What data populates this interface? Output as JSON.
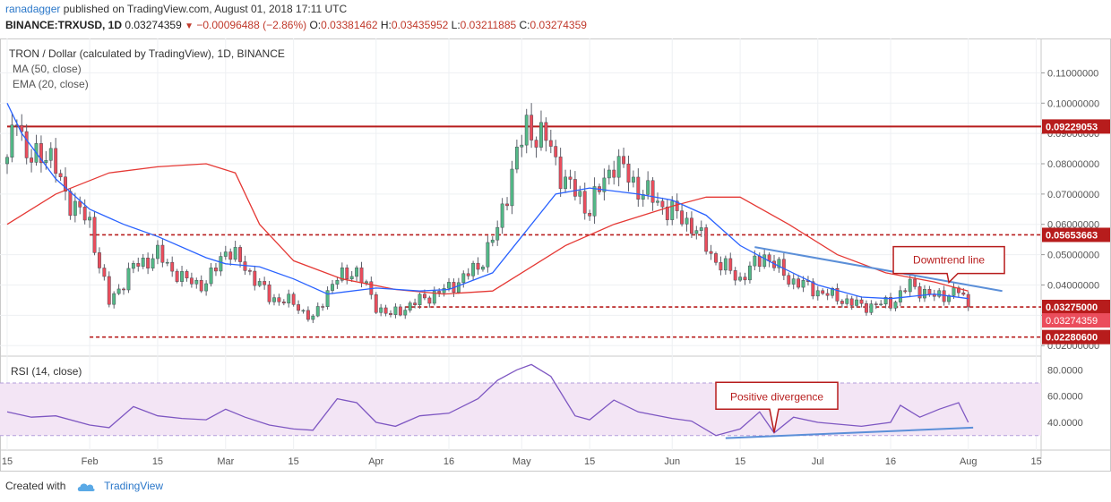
{
  "header": {
    "author": "ranadagger",
    "published_text": "published on TradingView.com, August 01, 2018 17:11 UTC",
    "symbol": "BINANCE:TRXUSD, 1D",
    "last": "0.03274359",
    "change": "−0.00096488 (−2.86%)",
    "o_label": "O:",
    "o": "0.03381462",
    "h_label": "H:",
    "h": "0.03435952",
    "l_label": "L:",
    "l": "0.03211885",
    "c_label": "C:",
    "c": "0.03274359"
  },
  "footer": {
    "created_with": "Created with",
    "brand": "TradingView",
    "logo_icon": "tradingview-cloud-icon"
  },
  "colors": {
    "up": "#53b987",
    "down": "#eb4d5c",
    "ma50": "#e53935",
    "ema20": "#2962ff",
    "trendline": "#5b8fd8",
    "level": "#b71c1c",
    "rsi": "#7e57c2",
    "rsi_band": "#f3e5f5",
    "annotation": "#b71c1c"
  },
  "chart_data": {
    "type": "candlestick",
    "title": "TRON / Dollar (calculated by TradingView), 1D, BINANCE",
    "legend": [
      "MA (50, close)",
      "EMA (20, close)"
    ],
    "x_tick_labels": [
      "15",
      "Feb",
      "15",
      "Mar",
      "15",
      "Apr",
      "16",
      "May",
      "15",
      "Jun",
      "15",
      "Jul",
      "16",
      "Aug",
      "15"
    ],
    "x_tick_dates": [
      "2018-01-15",
      "2018-02-01",
      "2018-02-15",
      "2018-03-01",
      "2018-03-15",
      "2018-04-01",
      "2018-04-16",
      "2018-05-01",
      "2018-05-15",
      "2018-06-01",
      "2018-06-15",
      "2018-07-01",
      "2018-07-16",
      "2018-08-01",
      "2018-08-15"
    ],
    "y_ticks": [
      "0.02000000",
      "0.03000000",
      "0.04000000",
      "0.05000000",
      "0.06000000",
      "0.07000000",
      "0.08000000",
      "0.09000000",
      "0.10000000",
      "0.11000000"
    ],
    "ylim": [
      0.0174,
      0.1178
    ],
    "date_range": [
      "2018-01-15",
      "2018-08-16"
    ],
    "ma50_points": [
      [
        "2018-01-15",
        0.06
      ],
      [
        "2018-01-25",
        0.07
      ],
      [
        "2018-02-05",
        0.077
      ],
      [
        "2018-02-15",
        0.079
      ],
      [
        "2018-02-25",
        0.08
      ],
      [
        "2018-03-03",
        0.077
      ],
      [
        "2018-03-08",
        0.06
      ],
      [
        "2018-03-15",
        0.048
      ],
      [
        "2018-03-25",
        0.042
      ],
      [
        "2018-04-05",
        0.0385
      ],
      [
        "2018-04-15",
        0.037
      ],
      [
        "2018-04-25",
        0.038
      ],
      [
        "2018-05-01",
        0.044
      ],
      [
        "2018-05-10",
        0.053
      ],
      [
        "2018-05-20",
        0.06
      ],
      [
        "2018-06-01",
        0.066
      ],
      [
        "2018-06-08",
        0.069
      ],
      [
        "2018-06-15",
        0.069
      ],
      [
        "2018-06-25",
        0.06
      ],
      [
        "2018-07-05",
        0.05
      ],
      [
        "2018-07-15",
        0.044
      ],
      [
        "2018-07-25",
        0.041
      ],
      [
        "2018-08-01",
        0.038
      ]
    ],
    "ema20_points": [
      [
        "2018-01-15",
        0.1
      ],
      [
        "2018-01-18",
        0.09
      ],
      [
        "2018-01-25",
        0.075
      ],
      [
        "2018-02-01",
        0.065
      ],
      [
        "2018-02-08",
        0.06
      ],
      [
        "2018-02-15",
        0.056
      ],
      [
        "2018-02-25",
        0.049
      ],
      [
        "2018-03-01",
        0.047
      ],
      [
        "2018-03-08",
        0.046
      ],
      [
        "2018-03-15",
        0.042
      ],
      [
        "2018-03-22",
        0.037
      ],
      [
        "2018-04-01",
        0.039
      ],
      [
        "2018-04-10",
        0.038
      ],
      [
        "2018-04-16",
        0.0385
      ],
      [
        "2018-04-25",
        0.044
      ],
      [
        "2018-05-01",
        0.056
      ],
      [
        "2018-05-08",
        0.07
      ],
      [
        "2018-05-15",
        0.072
      ],
      [
        "2018-05-25",
        0.07
      ],
      [
        "2018-06-01",
        0.068
      ],
      [
        "2018-06-08",
        0.063
      ],
      [
        "2018-06-15",
        0.053
      ],
      [
        "2018-06-22",
        0.047
      ],
      [
        "2018-07-01",
        0.04
      ],
      [
        "2018-07-10",
        0.036
      ],
      [
        "2018-07-16",
        0.0355
      ],
      [
        "2018-07-25",
        0.037
      ],
      [
        "2018-08-01",
        0.0355
      ]
    ],
    "price_path": [
      [
        "2018-01-15",
        0.08
      ],
      [
        "2018-01-17",
        0.1
      ],
      [
        "2018-01-19",
        0.08
      ],
      [
        "2018-01-23",
        0.085
      ],
      [
        "2018-01-27",
        0.07
      ],
      [
        "2018-02-01",
        0.06
      ],
      [
        "2018-02-05",
        0.034
      ],
      [
        "2018-02-10",
        0.046
      ],
      [
        "2018-02-15",
        0.05
      ],
      [
        "2018-02-20",
        0.042
      ],
      [
        "2018-02-25",
        0.04
      ],
      [
        "2018-03-01",
        0.052
      ],
      [
        "2018-03-05",
        0.046
      ],
      [
        "2018-03-10",
        0.036
      ],
      [
        "2018-03-15",
        0.034
      ],
      [
        "2018-03-19",
        0.0285
      ],
      [
        "2018-03-23",
        0.041
      ],
      [
        "2018-03-28",
        0.045
      ],
      [
        "2018-04-01",
        0.033
      ],
      [
        "2018-04-04",
        0.03
      ],
      [
        "2018-04-10",
        0.035
      ],
      [
        "2018-04-16",
        0.039
      ],
      [
        "2018-04-22",
        0.046
      ],
      [
        "2018-04-26",
        0.058
      ],
      [
        "2018-04-29",
        0.078
      ],
      [
        "2018-05-02",
        0.092
      ],
      [
        "2018-05-06",
        0.088
      ],
      [
        "2018-05-10",
        0.074
      ],
      [
        "2018-05-15",
        0.065
      ],
      [
        "2018-05-20",
        0.081
      ],
      [
        "2018-05-25",
        0.072
      ],
      [
        "2018-06-01",
        0.064
      ],
      [
        "2018-06-05",
        0.06
      ],
      [
        "2018-06-10",
        0.048
      ],
      [
        "2018-06-15",
        0.042
      ],
      [
        "2018-06-20",
        0.05
      ],
      [
        "2018-06-25",
        0.042
      ],
      [
        "2018-07-01",
        0.038
      ],
      [
        "2018-07-10",
        0.033
      ],
      [
        "2018-07-16",
        0.034
      ],
      [
        "2018-07-20",
        0.04
      ],
      [
        "2018-07-25",
        0.036
      ],
      [
        "2018-07-30",
        0.038
      ],
      [
        "2018-08-01",
        0.0327
      ]
    ],
    "horizontal_levels": [
      {
        "value": 0.09229053,
        "label": "0.09229053",
        "style": "solid",
        "from": "2018-01-15"
      },
      {
        "value": 0.05653663,
        "label": "0.05653663",
        "style": "dashed",
        "from": "2018-02-01"
      },
      {
        "value": 0.03275,
        "label": "0.03275000",
        "style": "dashed",
        "from": "2018-04-07"
      },
      {
        "value": 0.022806,
        "label": "0.02280600",
        "style": "dashed",
        "from": "2018-02-01"
      }
    ],
    "last_price_label": "0.03274359",
    "last_price": 0.03274359,
    "trendline": {
      "from": [
        "2018-06-18",
        0.0525
      ],
      "to": [
        "2018-08-08",
        0.038
      ]
    },
    "annotations": [
      {
        "text": "Downtrend line",
        "anchor_date": "2018-07-28",
        "anchor_value": 0.0432
      },
      {
        "text": "Positive divergence",
        "anchor_date": "2018-06-22",
        "anchor_value": 31
      }
    ],
    "rsi": {
      "label": "RSI (14, close)",
      "y_ticks": [
        "40.0000",
        "60.0000",
        "80.0000"
      ],
      "ylim": [
        23,
        87
      ],
      "band": [
        30,
        70
      ],
      "points": [
        [
          "2018-01-15",
          48
        ],
        [
          "2018-01-20",
          44
        ],
        [
          "2018-01-25",
          45
        ],
        [
          "2018-02-01",
          38
        ],
        [
          "2018-02-05",
          36
        ],
        [
          "2018-02-10",
          52
        ],
        [
          "2018-02-15",
          45
        ],
        [
          "2018-02-20",
          43
        ],
        [
          "2018-02-25",
          42
        ],
        [
          "2018-03-01",
          50
        ],
        [
          "2018-03-05",
          44
        ],
        [
          "2018-03-10",
          38
        ],
        [
          "2018-03-15",
          35
        ],
        [
          "2018-03-19",
          34
        ],
        [
          "2018-03-24",
          58
        ],
        [
          "2018-03-28",
          55
        ],
        [
          "2018-04-01",
          40
        ],
        [
          "2018-04-05",
          37
        ],
        [
          "2018-04-10",
          45
        ],
        [
          "2018-04-16",
          47
        ],
        [
          "2018-04-22",
          58
        ],
        [
          "2018-04-26",
          72
        ],
        [
          "2018-04-30",
          80
        ],
        [
          "2018-05-03",
          84
        ],
        [
          "2018-05-07",
          75
        ],
        [
          "2018-05-12",
          45
        ],
        [
          "2018-05-15",
          42
        ],
        [
          "2018-05-20",
          57
        ],
        [
          "2018-05-25",
          48
        ],
        [
          "2018-06-01",
          43
        ],
        [
          "2018-06-05",
          41
        ],
        [
          "2018-06-10",
          30
        ],
        [
          "2018-06-15",
          35
        ],
        [
          "2018-06-19",
          48
        ],
        [
          "2018-06-22",
          32
        ],
        [
          "2018-06-26",
          44
        ],
        [
          "2018-07-01",
          40
        ],
        [
          "2018-07-10",
          37
        ],
        [
          "2018-07-16",
          40
        ],
        [
          "2018-07-18",
          53
        ],
        [
          "2018-07-22",
          44
        ],
        [
          "2018-07-26",
          50
        ],
        [
          "2018-07-30",
          55
        ],
        [
          "2018-08-01",
          40
        ]
      ],
      "divergence_line": {
        "from": [
          "2018-06-12",
          28
        ],
        "to": [
          "2018-08-02",
          36
        ]
      }
    }
  }
}
